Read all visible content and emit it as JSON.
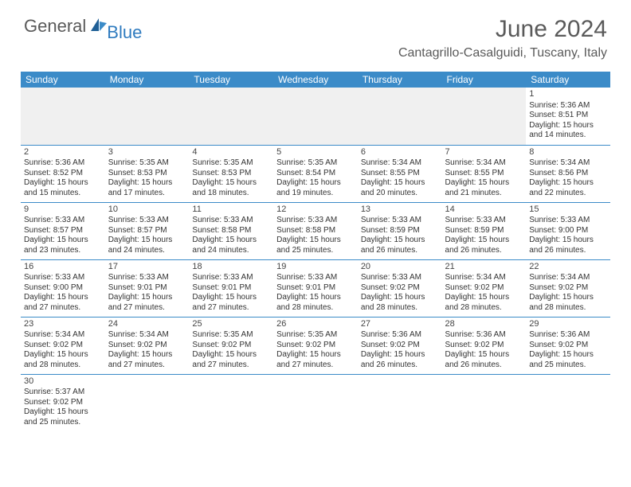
{
  "logo": {
    "general": "General",
    "blue": "Blue"
  },
  "title": "June 2024",
  "location": "Cantagrillo-Casalguidi, Tuscany, Italy",
  "colors": {
    "header_bg": "#3b8bc8",
    "header_text": "#ffffff",
    "rule": "#3b8bc8",
    "blank_bg": "#f0f0f0"
  },
  "day_headers": [
    "Sunday",
    "Monday",
    "Tuesday",
    "Wednesday",
    "Thursday",
    "Friday",
    "Saturday"
  ],
  "weeks": [
    [
      null,
      null,
      null,
      null,
      null,
      null,
      {
        "n": "1",
        "sr": "Sunrise: 5:36 AM",
        "ss": "Sunset: 8:51 PM",
        "d1": "Daylight: 15 hours",
        "d2": "and 14 minutes."
      }
    ],
    [
      {
        "n": "2",
        "sr": "Sunrise: 5:36 AM",
        "ss": "Sunset: 8:52 PM",
        "d1": "Daylight: 15 hours",
        "d2": "and 15 minutes."
      },
      {
        "n": "3",
        "sr": "Sunrise: 5:35 AM",
        "ss": "Sunset: 8:53 PM",
        "d1": "Daylight: 15 hours",
        "d2": "and 17 minutes."
      },
      {
        "n": "4",
        "sr": "Sunrise: 5:35 AM",
        "ss": "Sunset: 8:53 PM",
        "d1": "Daylight: 15 hours",
        "d2": "and 18 minutes."
      },
      {
        "n": "5",
        "sr": "Sunrise: 5:35 AM",
        "ss": "Sunset: 8:54 PM",
        "d1": "Daylight: 15 hours",
        "d2": "and 19 minutes."
      },
      {
        "n": "6",
        "sr": "Sunrise: 5:34 AM",
        "ss": "Sunset: 8:55 PM",
        "d1": "Daylight: 15 hours",
        "d2": "and 20 minutes."
      },
      {
        "n": "7",
        "sr": "Sunrise: 5:34 AM",
        "ss": "Sunset: 8:55 PM",
        "d1": "Daylight: 15 hours",
        "d2": "and 21 minutes."
      },
      {
        "n": "8",
        "sr": "Sunrise: 5:34 AM",
        "ss": "Sunset: 8:56 PM",
        "d1": "Daylight: 15 hours",
        "d2": "and 22 minutes."
      }
    ],
    [
      {
        "n": "9",
        "sr": "Sunrise: 5:33 AM",
        "ss": "Sunset: 8:57 PM",
        "d1": "Daylight: 15 hours",
        "d2": "and 23 minutes."
      },
      {
        "n": "10",
        "sr": "Sunrise: 5:33 AM",
        "ss": "Sunset: 8:57 PM",
        "d1": "Daylight: 15 hours",
        "d2": "and 24 minutes."
      },
      {
        "n": "11",
        "sr": "Sunrise: 5:33 AM",
        "ss": "Sunset: 8:58 PM",
        "d1": "Daylight: 15 hours",
        "d2": "and 24 minutes."
      },
      {
        "n": "12",
        "sr": "Sunrise: 5:33 AM",
        "ss": "Sunset: 8:58 PM",
        "d1": "Daylight: 15 hours",
        "d2": "and 25 minutes."
      },
      {
        "n": "13",
        "sr": "Sunrise: 5:33 AM",
        "ss": "Sunset: 8:59 PM",
        "d1": "Daylight: 15 hours",
        "d2": "and 26 minutes."
      },
      {
        "n": "14",
        "sr": "Sunrise: 5:33 AM",
        "ss": "Sunset: 8:59 PM",
        "d1": "Daylight: 15 hours",
        "d2": "and 26 minutes."
      },
      {
        "n": "15",
        "sr": "Sunrise: 5:33 AM",
        "ss": "Sunset: 9:00 PM",
        "d1": "Daylight: 15 hours",
        "d2": "and 26 minutes."
      }
    ],
    [
      {
        "n": "16",
        "sr": "Sunrise: 5:33 AM",
        "ss": "Sunset: 9:00 PM",
        "d1": "Daylight: 15 hours",
        "d2": "and 27 minutes."
      },
      {
        "n": "17",
        "sr": "Sunrise: 5:33 AM",
        "ss": "Sunset: 9:01 PM",
        "d1": "Daylight: 15 hours",
        "d2": "and 27 minutes."
      },
      {
        "n": "18",
        "sr": "Sunrise: 5:33 AM",
        "ss": "Sunset: 9:01 PM",
        "d1": "Daylight: 15 hours",
        "d2": "and 27 minutes."
      },
      {
        "n": "19",
        "sr": "Sunrise: 5:33 AM",
        "ss": "Sunset: 9:01 PM",
        "d1": "Daylight: 15 hours",
        "d2": "and 28 minutes."
      },
      {
        "n": "20",
        "sr": "Sunrise: 5:33 AM",
        "ss": "Sunset: 9:02 PM",
        "d1": "Daylight: 15 hours",
        "d2": "and 28 minutes."
      },
      {
        "n": "21",
        "sr": "Sunrise: 5:34 AM",
        "ss": "Sunset: 9:02 PM",
        "d1": "Daylight: 15 hours",
        "d2": "and 28 minutes."
      },
      {
        "n": "22",
        "sr": "Sunrise: 5:34 AM",
        "ss": "Sunset: 9:02 PM",
        "d1": "Daylight: 15 hours",
        "d2": "and 28 minutes."
      }
    ],
    [
      {
        "n": "23",
        "sr": "Sunrise: 5:34 AM",
        "ss": "Sunset: 9:02 PM",
        "d1": "Daylight: 15 hours",
        "d2": "and 28 minutes."
      },
      {
        "n": "24",
        "sr": "Sunrise: 5:34 AM",
        "ss": "Sunset: 9:02 PM",
        "d1": "Daylight: 15 hours",
        "d2": "and 27 minutes."
      },
      {
        "n": "25",
        "sr": "Sunrise: 5:35 AM",
        "ss": "Sunset: 9:02 PM",
        "d1": "Daylight: 15 hours",
        "d2": "and 27 minutes."
      },
      {
        "n": "26",
        "sr": "Sunrise: 5:35 AM",
        "ss": "Sunset: 9:02 PM",
        "d1": "Daylight: 15 hours",
        "d2": "and 27 minutes."
      },
      {
        "n": "27",
        "sr": "Sunrise: 5:36 AM",
        "ss": "Sunset: 9:02 PM",
        "d1": "Daylight: 15 hours",
        "d2": "and 26 minutes."
      },
      {
        "n": "28",
        "sr": "Sunrise: 5:36 AM",
        "ss": "Sunset: 9:02 PM",
        "d1": "Daylight: 15 hours",
        "d2": "and 26 minutes."
      },
      {
        "n": "29",
        "sr": "Sunrise: 5:36 AM",
        "ss": "Sunset: 9:02 PM",
        "d1": "Daylight: 15 hours",
        "d2": "and 25 minutes."
      }
    ],
    [
      {
        "n": "30",
        "sr": "Sunrise: 5:37 AM",
        "ss": "Sunset: 9:02 PM",
        "d1": "Daylight: 15 hours",
        "d2": "and 25 minutes."
      },
      null,
      null,
      null,
      null,
      null,
      null
    ]
  ]
}
